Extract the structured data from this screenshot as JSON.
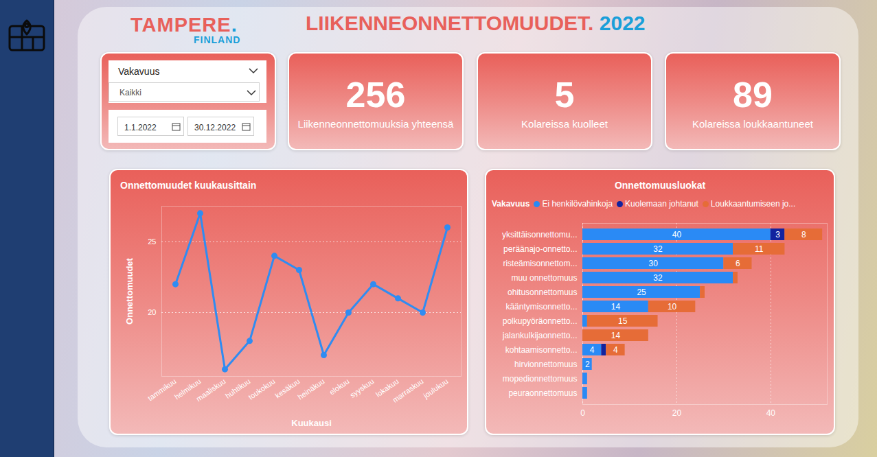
{
  "header": {
    "logo": "TAMPERE.",
    "logo_sub": "FINLAND",
    "title": "LIIKENNEONNETTOMUUDET.",
    "year": "2022"
  },
  "filters": {
    "label": "Vakavuus",
    "selection": "Kaikki",
    "start_date": "1.1.2022",
    "end_date": "30.12.2022"
  },
  "kpis": [
    {
      "value": 256,
      "label": "Liikenneonnettomuuksia yhteensä"
    },
    {
      "value": 5,
      "label": "Kolareissa kuolleet"
    },
    {
      "value": 89,
      "label": "Kolareissa loukkaantuneet"
    }
  ],
  "chart_data": [
    {
      "type": "line",
      "title": "Onnettomuudet kuukausittain",
      "x_label": "Kuukausi",
      "y_label": "Onnettomuudet",
      "categories": [
        "tammikuu",
        "helmikuu",
        "maaliskuu",
        "huhtikuu",
        "toukokuu",
        "kesäkuu",
        "heinäkuu",
        "elokuu",
        "syyskuu",
        "lokakuu",
        "marraskuu",
        "joulukuu"
      ],
      "values": [
        22,
        27,
        16,
        18,
        24,
        23,
        17,
        20,
        22,
        21,
        20,
        26
      ],
      "color": "#2f8cf2",
      "marker": "circle",
      "ylim": [
        15.5,
        27.5
      ],
      "yticks": [
        20,
        25
      ],
      "grid": true
    },
    {
      "type": "bar",
      "title": "Onnettomuusluokat",
      "orientation": "horizontal",
      "stacked": true,
      "data_labels": true,
      "legend": "top",
      "legend_title": "Vakavuus",
      "categories": [
        "yksittäisonnettomu...",
        "peräänajo-onnetto...",
        "risteämisonnettom...",
        "muu onnettomuus",
        "ohitusonnettomuus",
        "kääntymisonnetto...",
        "polkupyöräonnetto...",
        "jalankulkijaonnetto...",
        "kohtaamisonnetto...",
        "hirvionnettomuus",
        "mopedionnettomuus",
        "peuraonnettomuus"
      ],
      "series": [
        {
          "name": "Ei henkilövahinkoja",
          "color": "#2a8af5",
          "values": [
            40,
            32,
            30,
            32,
            25,
            14,
            1,
            0,
            4,
            2,
            1,
            1
          ],
          "value_labels": [
            "40",
            "32",
            "30",
            "32",
            "25",
            "14",
            null,
            null,
            "4",
            "2",
            null,
            null
          ]
        },
        {
          "name": "Kuolemaan johtanut",
          "color": "#12239e",
          "values": [
            3,
            0,
            0,
            0,
            0,
            0,
            0,
            0,
            1,
            0,
            0,
            0
          ],
          "value_labels": [
            "3",
            null,
            null,
            null,
            null,
            null,
            null,
            null,
            null,
            null,
            null,
            null
          ]
        },
        {
          "name": "Loukkaantumiseen jo...",
          "color": "#e66c37",
          "values": [
            8,
            11,
            6,
            1,
            1,
            10,
            15,
            14,
            4,
            0,
            0,
            0
          ],
          "value_labels": [
            "8",
            "11",
            "6",
            null,
            null,
            "10",
            "15",
            "14",
            "4",
            null,
            null,
            null
          ]
        }
      ],
      "xlim": [
        0,
        52
      ],
      "xticks": [
        0,
        20,
        40
      ],
      "grid": true
    }
  ]
}
